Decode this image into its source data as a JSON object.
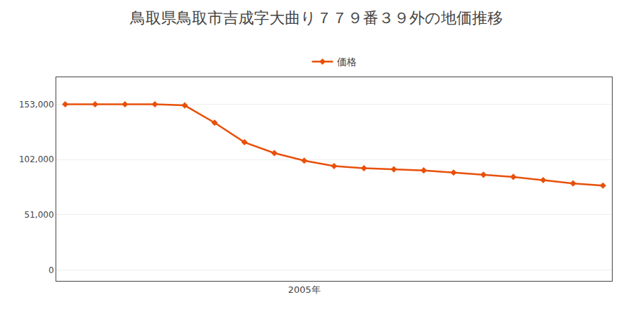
{
  "chart_data": {
    "type": "line",
    "title": "鳥取県鳥取市吉成字大曲り７７９番３９外の地価推移",
    "x": [
      1997,
      1998,
      1999,
      2000,
      2001,
      2002,
      2003,
      2004,
      2005,
      2006,
      2007,
      2008,
      2009,
      2010,
      2011,
      2012,
      2013,
      2014,
      2015
    ],
    "series": [
      {
        "name": "価格",
        "color": "#e8500a",
        "marker": "diamond",
        "values": [
          153000,
          153000,
          153000,
          153000,
          152000,
          136000,
          118000,
          108000,
          101000,
          96000,
          94000,
          93000,
          92000,
          90000,
          88000,
          86000,
          83000,
          80000,
          78000
        ]
      }
    ],
    "xlim": [
      1996.7,
      2015.3
    ],
    "xticks": [
      {
        "value": 2005,
        "label": "2005年"
      }
    ],
    "ylim": [
      -10000,
      178000
    ],
    "yticks": [
      0,
      {
        "value": 51000,
        "label": "51,000"
      },
      {
        "value": 102000,
        "label": "102,000"
      },
      {
        "value": 153000,
        "label": "153,000"
      }
    ],
    "grid": "y",
    "legend": "top"
  }
}
